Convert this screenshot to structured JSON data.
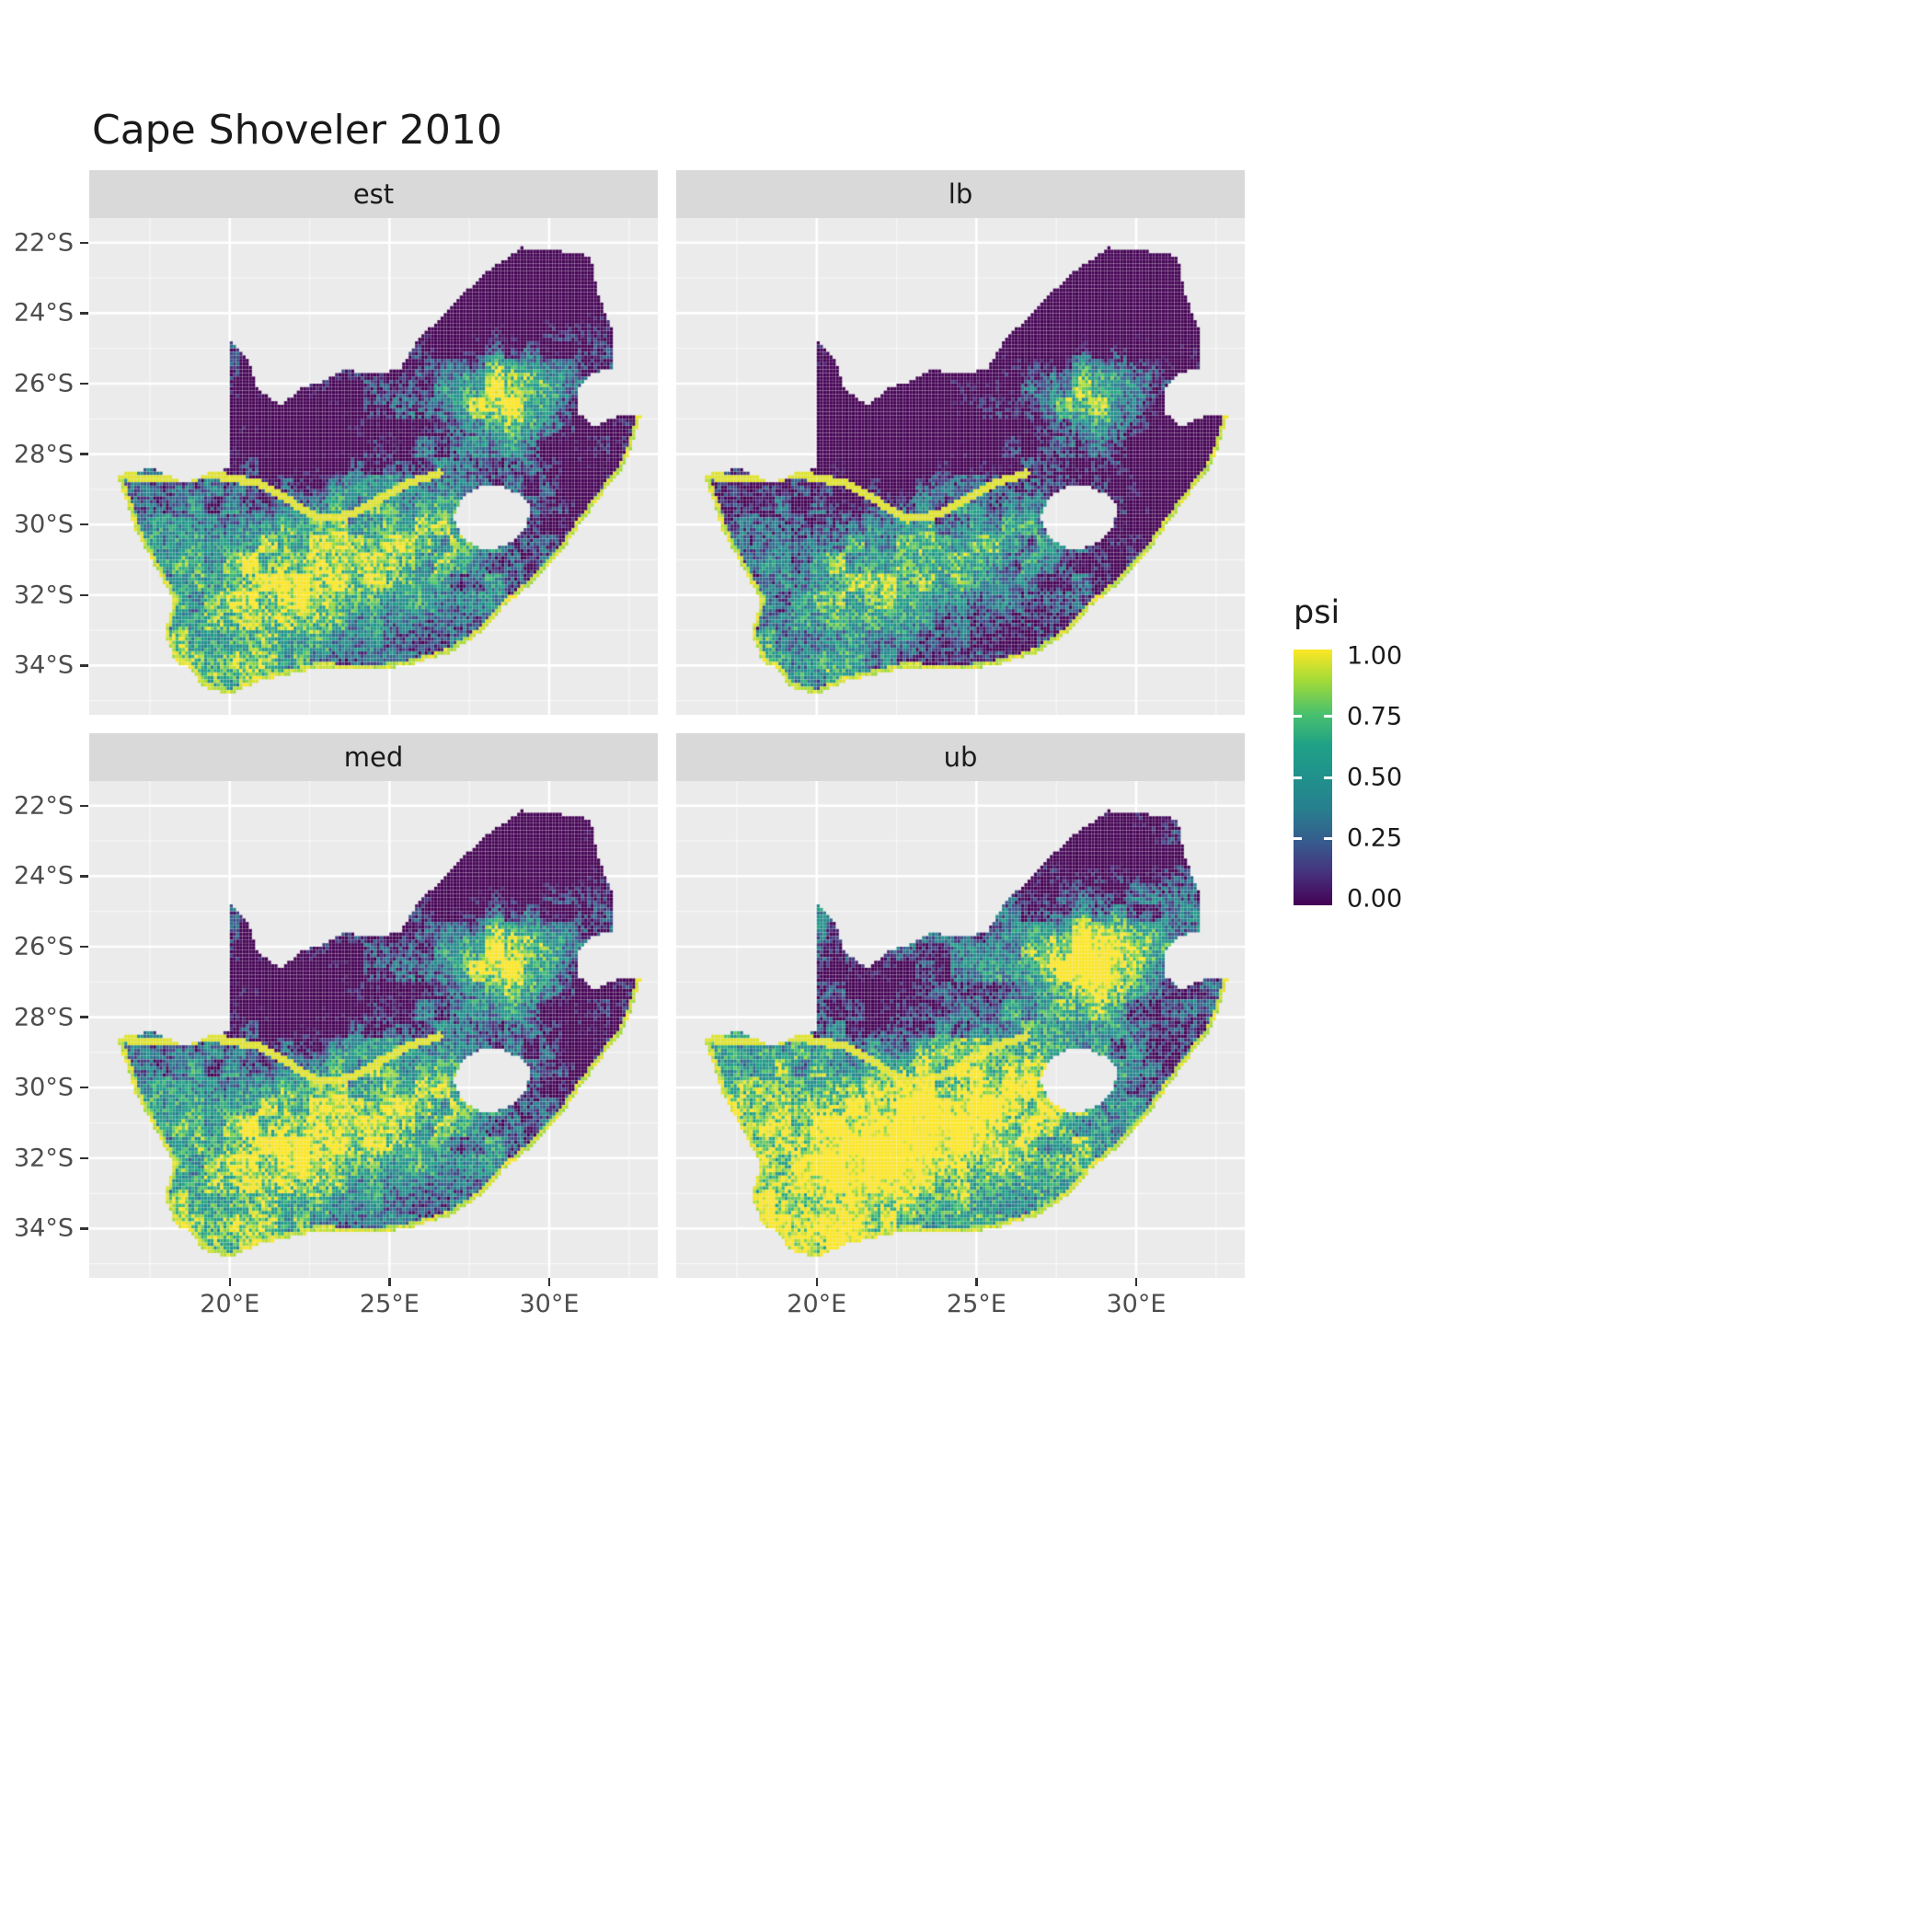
{
  "title": "Cape Shoveler 2010",
  "facets": [
    {
      "label": "est"
    },
    {
      "label": "lb"
    },
    {
      "label": "med"
    },
    {
      "label": "ub"
    }
  ],
  "legend": {
    "title": "psi",
    "ticks": [
      "1.00",
      "0.75",
      "0.50",
      "0.25",
      "0.00"
    ],
    "gradient_stops": [
      "#440154",
      "#46327e",
      "#365c8d",
      "#277f8e",
      "#21918c",
      "#1fa187",
      "#4ac16d",
      "#a0da39",
      "#fde725"
    ]
  },
  "axes": {
    "x_ticks": [
      {
        "label": "20°E",
        "lon": 20
      },
      {
        "label": "25°E",
        "lon": 25
      },
      {
        "label": "30°E",
        "lon": 30
      }
    ],
    "y_ticks": [
      {
        "label": "22°S",
        "lat": -22
      },
      {
        "label": "24°S",
        "lat": -24
      },
      {
        "label": "26°S",
        "lat": -26
      },
      {
        "label": "28°S",
        "lat": -28
      },
      {
        "label": "30°S",
        "lat": -30
      },
      {
        "label": "32°S",
        "lat": -32
      },
      {
        "label": "34°S",
        "lat": -34
      }
    ]
  },
  "colors": {
    "panel_bg": "#ebebeb",
    "strip_bg": "#d9d9d9",
    "gridline": "#ffffff",
    "tick_text": "#4d4d4d",
    "title_text": "#1a1a1a",
    "low": "#440154",
    "high": "#fde725"
  },
  "chart_data": {
    "type": "heatmap",
    "subtype": "faceted-raster-occupancy-map",
    "title": "Cape Shoveler 2010",
    "region": "South Africa (Lesotho shown as hole in raster)",
    "facets": [
      "est",
      "lb",
      "med",
      "ub"
    ],
    "variable": "psi (occupancy probability)",
    "scale": {
      "palette": "viridis",
      "limits": [
        0,
        1
      ],
      "breaks": [
        0.0,
        0.25,
        0.5,
        0.75,
        1.0
      ]
    },
    "x_axis": {
      "tick_labels": [
        "20°E",
        "25°E",
        "30°E"
      ],
      "approx_range_lon_east": [
        15.6,
        33.4
      ]
    },
    "y_axis": {
      "tick_labels": [
        "22°S",
        "24°S",
        "26°S",
        "28°S",
        "30°S",
        "32°S",
        "34°S"
      ],
      "approx_range_lat_south": [
        21.3,
        35.4
      ]
    },
    "legend_position": "right",
    "grid": true,
    "pattern_summary": {
      "est": "High psi (yellow, near 1) over southern/central plateau and along coastline and Orange River; very low psi (dark purple, near 0) in north-east (Limpopo) and northern Kalahari interior; mixed teal/green along west coast and eastern escarpment; bright yellow-green patch near 27-30°E, 25.5-27°S.",
      "lb": "Lower bound: overall darker than est; yellow restricted to south-western core, coastline ring and river corridor; most interior teal to dark purple.",
      "med": "Similar spatial pattern to est but slightly brighter across the central and southern plateau.",
      "ub": "Upper bound: almost the entire southern half saturated yellow (psi near 1); north-east interior remains dark purple with green speckle."
    },
    "notes": [
      "Coastline cells have psi near 1 (yellow rim) in all facets",
      "A yellow high-psi corridor follows the Orange River from the west coast inland",
      "Lesotho appears as an empty (background) hole around 27-29.5°E, 29-30.7°S"
    ]
  }
}
